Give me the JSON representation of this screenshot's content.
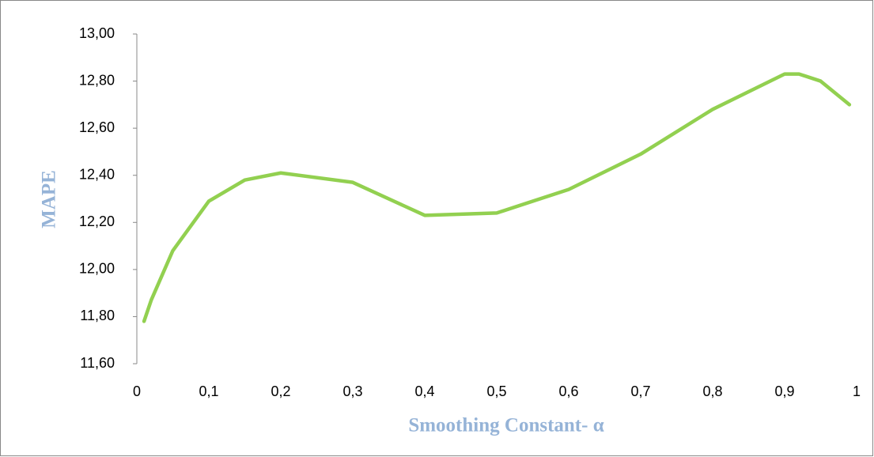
{
  "chart_data": {
    "type": "line",
    "xlabel": "Smoothing Constant- α",
    "ylabel": "MAPE",
    "x": [
      0.01,
      0.02,
      0.05,
      0.1,
      0.15,
      0.2,
      0.3,
      0.4,
      0.5,
      0.6,
      0.7,
      0.8,
      0.9,
      0.92,
      0.95,
      0.99
    ],
    "series": [
      {
        "name": "MAPE",
        "color": "#92d050",
        "values": [
          11.78,
          11.87,
          12.08,
          12.29,
          12.38,
          12.41,
          12.37,
          12.23,
          12.24,
          12.34,
          12.49,
          12.68,
          12.83,
          12.83,
          12.8,
          12.7
        ]
      }
    ],
    "xlim": [
      0,
      1
    ],
    "xticks": [
      0,
      {
        "value": 0.1,
        "label": "0,1"
      },
      {
        "value": 0.2,
        "label": "0,2"
      },
      {
        "value": 0.3,
        "label": "0,3"
      },
      {
        "value": 0.4,
        "label": "0,4"
      },
      {
        "value": 0.5,
        "label": "0,5"
      },
      {
        "value": 0.6,
        "label": "0,6"
      },
      {
        "value": 0.7,
        "label": "0,7"
      },
      {
        "value": 0.8,
        "label": "0,8"
      },
      {
        "value": 0.9,
        "label": "0,9"
      },
      1
    ],
    "ylim": [
      11.6,
      13
    ],
    "yticks": [
      {
        "value": 11.6,
        "label": "11,60"
      },
      {
        "value": 11.8,
        "label": "11,80"
      },
      {
        "value": 12,
        "label": "12,00"
      },
      {
        "value": 12.2,
        "label": "12,20"
      },
      {
        "value": 12.4,
        "label": "12,40"
      },
      {
        "value": 12.6,
        "label": "12,60"
      },
      {
        "value": 12.8,
        "label": "12,80"
      },
      {
        "value": 13,
        "label": "13,00"
      }
    ],
    "grid": false
  }
}
